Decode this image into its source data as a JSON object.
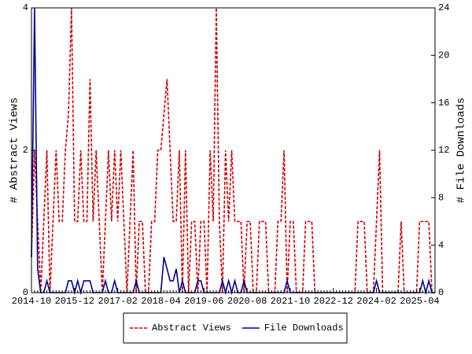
{
  "chart_data": {
    "type": "line",
    "categories": [
      "2014-10",
      null,
      null,
      null,
      null,
      null,
      null,
      null,
      null,
      null,
      null,
      null,
      null,
      null,
      "2015-12",
      null,
      null,
      null,
      null,
      null,
      null,
      null,
      null,
      null,
      null,
      null,
      null,
      null,
      "2017-02",
      null,
      null,
      null,
      null,
      null,
      null,
      null,
      null,
      null,
      null,
      null,
      null,
      null,
      "2018-04",
      null,
      null,
      null,
      null,
      null,
      null,
      null,
      null,
      null,
      null,
      null,
      null,
      null,
      "2019-06",
      null,
      null,
      null,
      null,
      null,
      null,
      null,
      null,
      null,
      null,
      null,
      null,
      null,
      "2020-08",
      null,
      null,
      null,
      null,
      null,
      null,
      null,
      null,
      null,
      null,
      null,
      null,
      null,
      "2021-10",
      null,
      null,
      null,
      null,
      null,
      null,
      null,
      null,
      null,
      null,
      null,
      null,
      null,
      "2022-12",
      null,
      null,
      null,
      null,
      null,
      null,
      null,
      null,
      null,
      null,
      null,
      null,
      null,
      "2024-02",
      null,
      null,
      null,
      null,
      null,
      null,
      null,
      null,
      null,
      null,
      null,
      null,
      null,
      "2025-04",
      null,
      null,
      null,
      null,
      null
    ],
    "ylabel": "# Abstract Views",
    "y2label": "# File Downloads",
    "ylim": [
      0,
      4
    ],
    "yticks": [
      0,
      2,
      4
    ],
    "y2lim": [
      0,
      24
    ],
    "y2ticks": [
      0,
      4,
      8,
      12,
      16,
      20,
      24
    ],
    "legend": "bottom",
    "series": [
      {
        "name": "Abstract Views",
        "color": "#cc0000",
        "dash": true,
        "values": [
          0.5,
          2,
          1,
          0,
          1,
          2,
          0,
          1,
          2,
          1,
          1,
          2,
          2.5,
          4,
          1,
          1,
          2,
          1,
          1,
          3,
          1,
          2,
          1,
          0,
          1,
          2,
          1,
          2,
          1,
          2,
          1,
          0,
          1,
          2,
          0,
          1,
          1,
          0,
          0,
          1,
          1,
          2,
          2,
          2.5,
          3,
          2,
          1,
          1,
          2,
          0,
          2,
          0,
          1,
          1,
          0,
          1,
          1,
          0,
          2,
          1,
          4,
          1,
          0,
          2,
          1,
          2,
          1,
          1,
          1,
          0,
          1,
          1,
          0,
          0,
          1,
          1,
          1,
          0,
          0,
          0,
          1,
          1,
          2,
          0,
          1,
          1,
          0,
          0,
          0,
          1,
          1,
          1,
          0,
          0,
          0,
          0,
          0,
          0,
          0,
          0,
          0,
          0,
          0,
          0,
          0,
          0,
          1,
          1,
          1,
          0,
          0,
          0,
          1,
          2,
          0,
          0,
          0,
          0,
          0,
          0,
          1,
          0,
          0,
          0,
          0,
          0,
          1,
          1,
          1,
          1,
          0,
          0
        ]
      },
      {
        "name": "File Downloads",
        "color": "#000099",
        "axis": "y2",
        "values": [
          3,
          24,
          2,
          0,
          0,
          1,
          0,
          0,
          0,
          0,
          0,
          0,
          1,
          1,
          0,
          1,
          0,
          1,
          1,
          1,
          0,
          0,
          0,
          0,
          1,
          0,
          0,
          1,
          0,
          0,
          0,
          0,
          0,
          0,
          1,
          0,
          0,
          0,
          0,
          0,
          0,
          0,
          0,
          3,
          2,
          1,
          1,
          2,
          0,
          1,
          0,
          0,
          0,
          0,
          1,
          1,
          0,
          0,
          0,
          0,
          0,
          0,
          1,
          0,
          1,
          0,
          1,
          0,
          0,
          1,
          0,
          0,
          0,
          0,
          0,
          0,
          0,
          0,
          0,
          0,
          0,
          0,
          0,
          1,
          0,
          0,
          0,
          0,
          0,
          0,
          0,
          0,
          0,
          0,
          0,
          0,
          0,
          0,
          0,
          0,
          0,
          0,
          0,
          0,
          0,
          0,
          0,
          0,
          0,
          0,
          0,
          0,
          1,
          0,
          0,
          0,
          0,
          0,
          0,
          0,
          0,
          0,
          0,
          0,
          0,
          0,
          0,
          1,
          0,
          1,
          0,
          0
        ]
      }
    ]
  }
}
